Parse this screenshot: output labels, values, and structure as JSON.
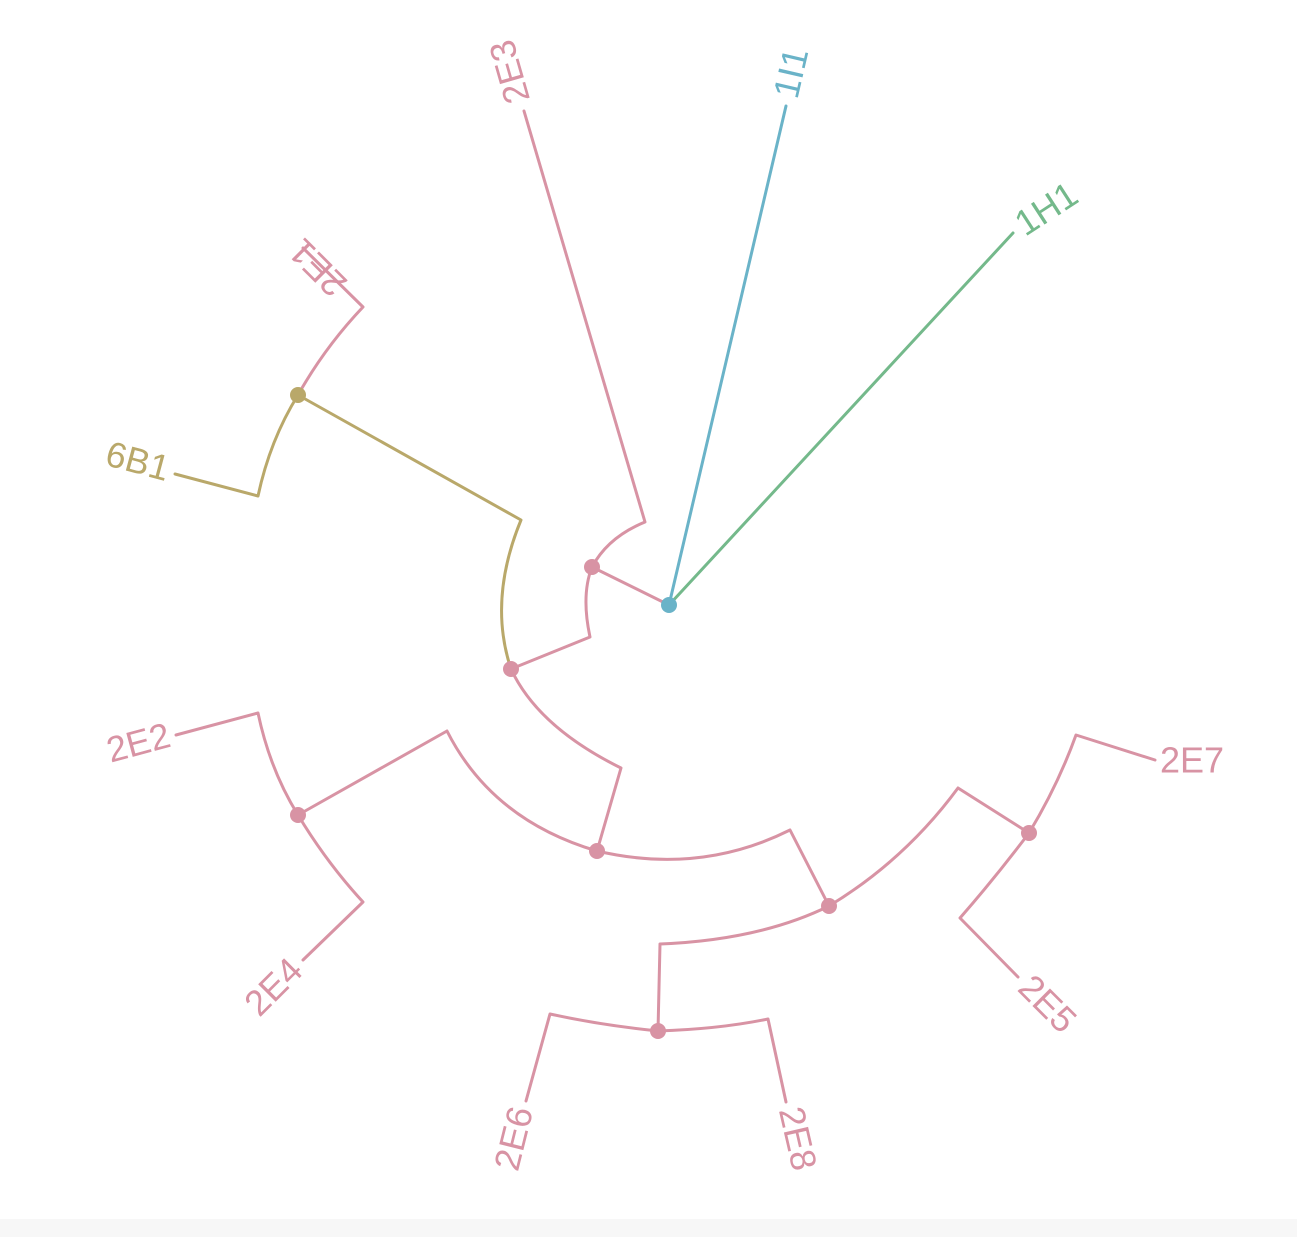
{
  "diagram": {
    "type": "radial-phylogenetic-tree",
    "colors": {
      "E": "#d893a4",
      "B": "#b9a86a",
      "I": "#6ab3c8",
      "H": "#74b98b"
    },
    "leaves": [
      {
        "id": "2E3",
        "label": "2E3",
        "group": "E"
      },
      {
        "id": "1I1",
        "label": "1I1",
        "group": "I"
      },
      {
        "id": "1H1",
        "label": "1H1",
        "group": "H"
      },
      {
        "id": "2E1",
        "label": "2E1",
        "group": "E"
      },
      {
        "id": "6B1",
        "label": "6B1",
        "group": "B"
      },
      {
        "id": "2E2",
        "label": "2E2",
        "group": "E"
      },
      {
        "id": "2E4",
        "label": "2E4",
        "group": "E"
      },
      {
        "id": "2E6",
        "label": "2E6",
        "group": "E"
      },
      {
        "id": "2E8",
        "label": "2E8",
        "group": "E"
      },
      {
        "id": "2E5",
        "label": "2E5",
        "group": "E"
      },
      {
        "id": "2E7",
        "label": "2E7",
        "group": "E"
      }
    ]
  }
}
